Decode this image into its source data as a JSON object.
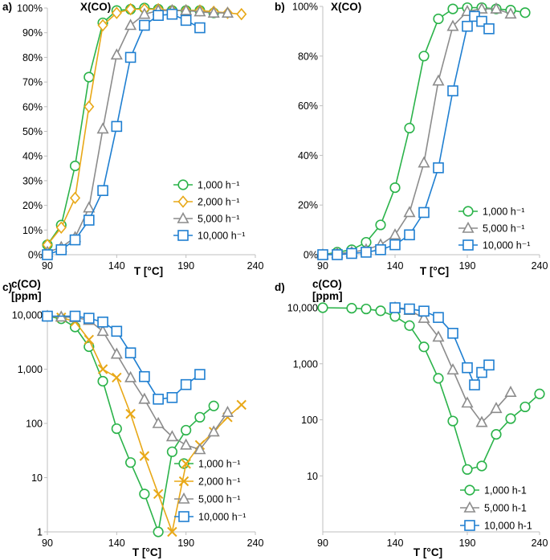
{
  "colors": {
    "green": "#2bb34a",
    "orange": "#e8a817",
    "gray": "#8c8c8c",
    "blue": "#1f7fd1",
    "axis": "#bfbfbf"
  },
  "chart_data": [
    {
      "panel_label": "a)",
      "type": "line",
      "title": "X(CO)",
      "xlabel": "T [°C]",
      "ylabel": "",
      "xlim": [
        90,
        240
      ],
      "ylim": [
        0,
        100
      ],
      "scale": "linear",
      "xticks": [
        90,
        140,
        190,
        240
      ],
      "yticks": [
        0,
        10,
        20,
        30,
        40,
        50,
        60,
        70,
        80,
        90,
        100
      ],
      "ytick_labels": [
        "0%",
        "10%",
        "20%",
        "30%",
        "40%",
        "50%",
        "60%",
        "70%",
        "80%",
        "90%",
        "100%"
      ],
      "legend_position": "bottom-right",
      "series": [
        {
          "name": "1,000 h⁻¹",
          "color": "green",
          "marker": "circle",
          "x": [
            90,
            100,
            110,
            120,
            130,
            140,
            150,
            160,
            170,
            180,
            190,
            200,
            210
          ],
          "y": [
            4,
            12,
            36,
            72,
            94,
            99,
            99.5,
            100,
            99.5,
            99,
            99,
            99,
            98
          ]
        },
        {
          "name": "2,000 h⁻¹",
          "color": "orange",
          "marker": "diamond",
          "x": [
            90,
            100,
            110,
            120,
            130,
            140,
            150,
            160,
            170,
            180,
            190,
            200,
            210,
            220,
            230
          ],
          "y": [
            4,
            11,
            23,
            60,
            93,
            98,
            99.5,
            99.5,
            99.5,
            99,
            99,
            99,
            98.5,
            98,
            97.5
          ]
        },
        {
          "name": "5,000 h⁻¹",
          "color": "gray",
          "marker": "triangle",
          "x": [
            90,
            100,
            110,
            120,
            130,
            140,
            150,
            160,
            170,
            180,
            190,
            200,
            210,
            220
          ],
          "y": [
            1,
            3,
            7,
            19,
            51,
            81,
            93,
            97.5,
            99,
            99,
            99,
            98.5,
            98,
            98
          ]
        },
        {
          "name": "10,000 h⁻¹",
          "color": "blue",
          "marker": "square",
          "x": [
            90,
            100,
            110,
            120,
            130,
            140,
            150,
            160,
            170,
            180,
            190,
            200
          ],
          "y": [
            0,
            2,
            6,
            14,
            26,
            52,
            80,
            93,
            97,
            97.5,
            95,
            92
          ]
        }
      ]
    },
    {
      "panel_label": "b)",
      "type": "line",
      "title": "X(CO)",
      "xlabel": "T [°C]",
      "ylabel": "",
      "xlim": [
        90,
        240
      ],
      "ylim": [
        0,
        100
      ],
      "scale": "linear",
      "xticks": [
        90,
        140,
        190,
        240
      ],
      "yticks": [
        0,
        20,
        40,
        60,
        80,
        100
      ],
      "ytick_labels": [
        "0%",
        "20%",
        "40%",
        "60%",
        "80%",
        "100%"
      ],
      "legend_position": "bottom-right",
      "series": [
        {
          "name": "1,000 h⁻¹",
          "color": "green",
          "marker": "circle",
          "x": [
            90,
            100,
            110,
            120,
            130,
            140,
            150,
            160,
            170,
            180,
            190,
            200,
            210,
            220,
            230
          ],
          "y": [
            0,
            1,
            2,
            5,
            12,
            27,
            51,
            80,
            95,
            99,
            99.5,
            99.5,
            99,
            98.5,
            97.5
          ]
        },
        {
          "name": "5,000 h⁻¹",
          "color": "gray",
          "marker": "triangle",
          "x": [
            90,
            100,
            110,
            120,
            130,
            140,
            150,
            160,
            170,
            180,
            190,
            200,
            210,
            220
          ],
          "y": [
            0,
            0.5,
            1,
            2,
            4,
            8,
            17,
            37,
            70,
            92,
            98,
            99,
            99,
            97
          ]
        },
        {
          "name": "10,000 h⁻¹",
          "color": "blue",
          "marker": "square",
          "x": [
            90,
            100,
            110,
            120,
            130,
            140,
            150,
            160,
            170,
            180,
            190,
            195,
            200,
            205
          ],
          "y": [
            0,
            0,
            0.5,
            1,
            2,
            4,
            8,
            17,
            35,
            66,
            92,
            96,
            94,
            91
          ]
        }
      ]
    },
    {
      "panel_label": "c)",
      "type": "line",
      "title": "c(CO)",
      "title_unit": "[ppm]",
      "xlabel": "T [°C]",
      "ylabel": "",
      "xlim": [
        90,
        240
      ],
      "ylim": [
        1,
        10000
      ],
      "scale": "log",
      "xticks": [
        90,
        140,
        190,
        240
      ],
      "yticks": [
        1,
        10,
        100,
        1000,
        10000
      ],
      "ytick_labels": [
        "1",
        "10",
        "100",
        "1,000",
        "10,000"
      ],
      "legend_position": "bottom-right",
      "series": [
        {
          "name": "1,000 h⁻¹",
          "color": "green",
          "marker": "circle",
          "x": [
            90,
            100,
            110,
            120,
            130,
            140,
            150,
            160,
            170,
            180,
            190,
            200,
            210
          ],
          "y": [
            9500,
            8500,
            6000,
            2600,
            600,
            80,
            19,
            5,
            1,
            30,
            75,
            130,
            210
          ]
        },
        {
          "name": "2,000 h⁻¹",
          "color": "orange",
          "marker": "x",
          "x": [
            90,
            100,
            110,
            120,
            130,
            140,
            150,
            160,
            170,
            180,
            190,
            200,
            210,
            220,
            230
          ],
          "y": [
            9500,
            9000,
            7500,
            3500,
            1000,
            700,
            150,
            25,
            5,
            1,
            18,
            40,
            70,
            130,
            220
          ]
        },
        {
          "name": "5,000 h⁻¹",
          "color": "gray",
          "marker": "triangle",
          "x": [
            90,
            100,
            110,
            120,
            130,
            140,
            150,
            160,
            170,
            180,
            190,
            200,
            210,
            220
          ],
          "y": [
            9500,
            9200,
            9000,
            8000,
            5000,
            1900,
            700,
            280,
            100,
            57,
            40,
            33,
            70,
            160
          ]
        },
        {
          "name": "10,000 h⁻¹",
          "color": "blue",
          "marker": "square",
          "x": [
            90,
            110,
            120,
            130,
            140,
            150,
            160,
            170,
            180,
            190,
            200
          ],
          "y": [
            9500,
            9500,
            8700,
            7400,
            5000,
            2000,
            730,
            280,
            300,
            520,
            800
          ]
        }
      ]
    },
    {
      "panel_label": "d)",
      "type": "line",
      "title": "c(CO)",
      "title_unit": "[ppm]",
      "xlabel": "T [°C]",
      "ylabel": "",
      "xlim": [
        90,
        240
      ],
      "ylim": [
        1,
        10000
      ],
      "scale": "log",
      "xticks": [
        90,
        140,
        190,
        240
      ],
      "yticks": [
        10,
        100,
        1000,
        10000
      ],
      "ytick_labels": [
        "10",
        "100",
        "1,000",
        "10,000"
      ],
      "legend_position": "bottom-right",
      "series": [
        {
          "name": "1,000 h-1",
          "color": "green",
          "marker": "circle",
          "x": [
            90,
            110,
            120,
            130,
            140,
            150,
            160,
            170,
            180,
            190,
            200,
            210,
            220,
            230,
            240
          ],
          "y": [
            10000,
            9800,
            9500,
            8800,
            7000,
            4800,
            2000,
            550,
            95,
            13,
            15,
            55,
            105,
            170,
            290
          ]
        },
        {
          "name": "5,000 h-1",
          "color": "gray",
          "marker": "triangle",
          "x": [
            140,
            150,
            160,
            170,
            180,
            190,
            200,
            210,
            220
          ],
          "y": [
            10000,
            9000,
            6500,
            3000,
            780,
            200,
            90,
            160,
            310
          ]
        },
        {
          "name": "10,000 h-1",
          "color": "blue",
          "marker": "square",
          "x": [
            140,
            150,
            160,
            170,
            180,
            190,
            195,
            200,
            205
          ],
          "y": [
            10000,
            9500,
            8700,
            6700,
            3500,
            850,
            420,
            700,
            950
          ]
        }
      ]
    }
  ]
}
